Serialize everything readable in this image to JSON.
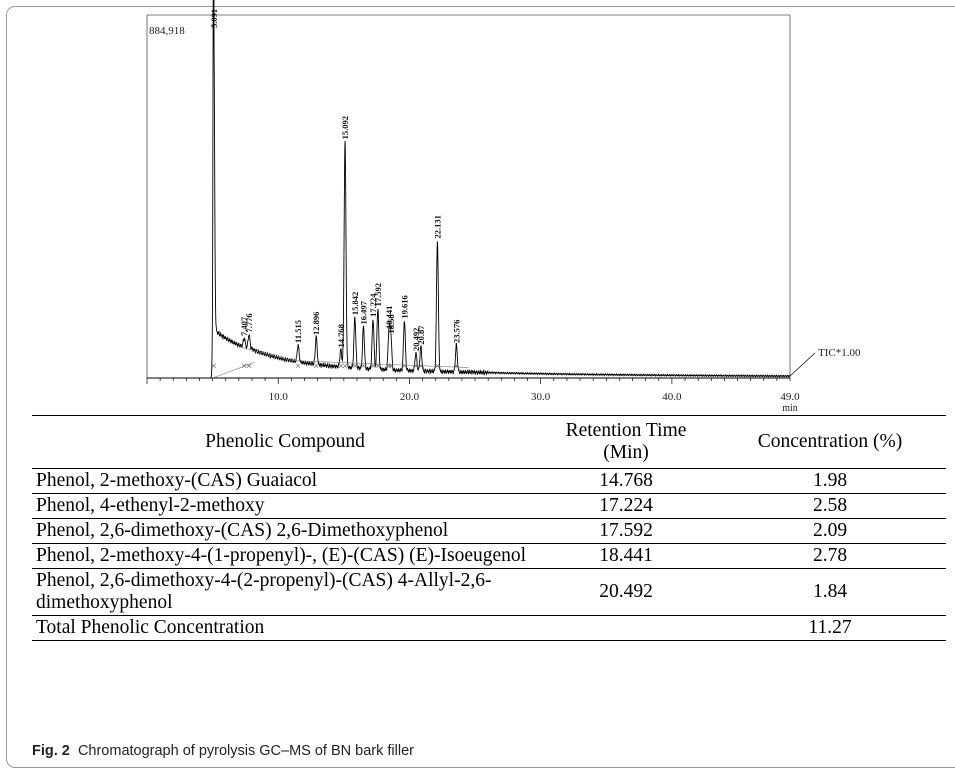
{
  "chart_data": {
    "type": "line",
    "max_label": "884,918",
    "detector_label": "TIC*1.00",
    "x_unit": "min",
    "xlim": [
      0.0,
      49.0
    ],
    "x_ticks": [
      "10.0",
      "20.0",
      "30.0",
      "40.0",
      "49.0"
    ],
    "x_tick_values": [
      10.0,
      20.0,
      30.0,
      40.0,
      49.0
    ],
    "peaks": [
      {
        "rt": 5.091,
        "label": "5.091",
        "rel": 1.0
      },
      {
        "rt": 7.407,
        "label": "7.407",
        "rel": 0.115
      },
      {
        "rt": 7.776,
        "label": "7.776",
        "rel": 0.125
      },
      {
        "rt": 11.515,
        "label": "11.515",
        "rel": 0.095
      },
      {
        "rt": 12.896,
        "label": "12.896",
        "rel": 0.118
      },
      {
        "rt": 14.768,
        "label": "14.768",
        "rel": 0.082
      },
      {
        "rt": 15.092,
        "label": "15.092",
        "rel": 0.68
      },
      {
        "rt": 15.842,
        "label": "15.842",
        "rel": 0.175
      },
      {
        "rt": 16.497,
        "label": "16.497",
        "rel": 0.148
      },
      {
        "rt": 17.224,
        "label": "17.224",
        "rel": 0.17
      },
      {
        "rt": 17.592,
        "label": "17.592",
        "rel": 0.2
      },
      {
        "rt": 18.441,
        "label": "18.441",
        "rel": 0.135
      },
      {
        "rt": 18.58,
        "label": "18.58",
        "rel": 0.122
      },
      {
        "rt": 19.616,
        "label": "19.616",
        "rel": 0.165
      },
      {
        "rt": 20.492,
        "label": "20.492",
        "rel": 0.072
      },
      {
        "rt": 20.87,
        "label": "20.87",
        "rel": 0.09
      },
      {
        "rt": 22.131,
        "label": "22.131",
        "rel": 0.395
      },
      {
        "rt": 23.576,
        "label": "23.576",
        "rel": 0.095
      }
    ]
  },
  "table": {
    "headers": [
      "Phenolic Compound",
      "Retention Time (Min)",
      "Concentration (%)"
    ],
    "rows": [
      {
        "compound": "Phenol, 2-methoxy-(CAS) Guaiacol",
        "rt": "14.768",
        "conc": "1.98"
      },
      {
        "compound": "Phenol, 4-ethenyl-2-methoxy",
        "rt": "17.224",
        "conc": "2.58"
      },
      {
        "compound": "Phenol, 2,6-dimethoxy-(CAS) 2,6-Dimethoxyphenol",
        "rt": "17.592",
        "conc": "2.09"
      },
      {
        "compound": "Phenol, 2-methoxy-4-(1-propenyl)-, (E)-(CAS) (E)-Isoeugenol",
        "rt": "18.441",
        "conc": "2.78"
      },
      {
        "compound": "Phenol, 2,6-dimethoxy-4-(2-propenyl)-(CAS) 4-Allyl-2,6-dimethoxyphenol",
        "rt": "20.492",
        "conc": "1.84"
      },
      {
        "compound": "Total Phenolic Concentration",
        "rt": "",
        "conc": "11.27"
      }
    ]
  },
  "caption": {
    "label": "Fig. 2",
    "text": "Chromatograph of pyrolysis GC–MS of BN bark filler"
  }
}
